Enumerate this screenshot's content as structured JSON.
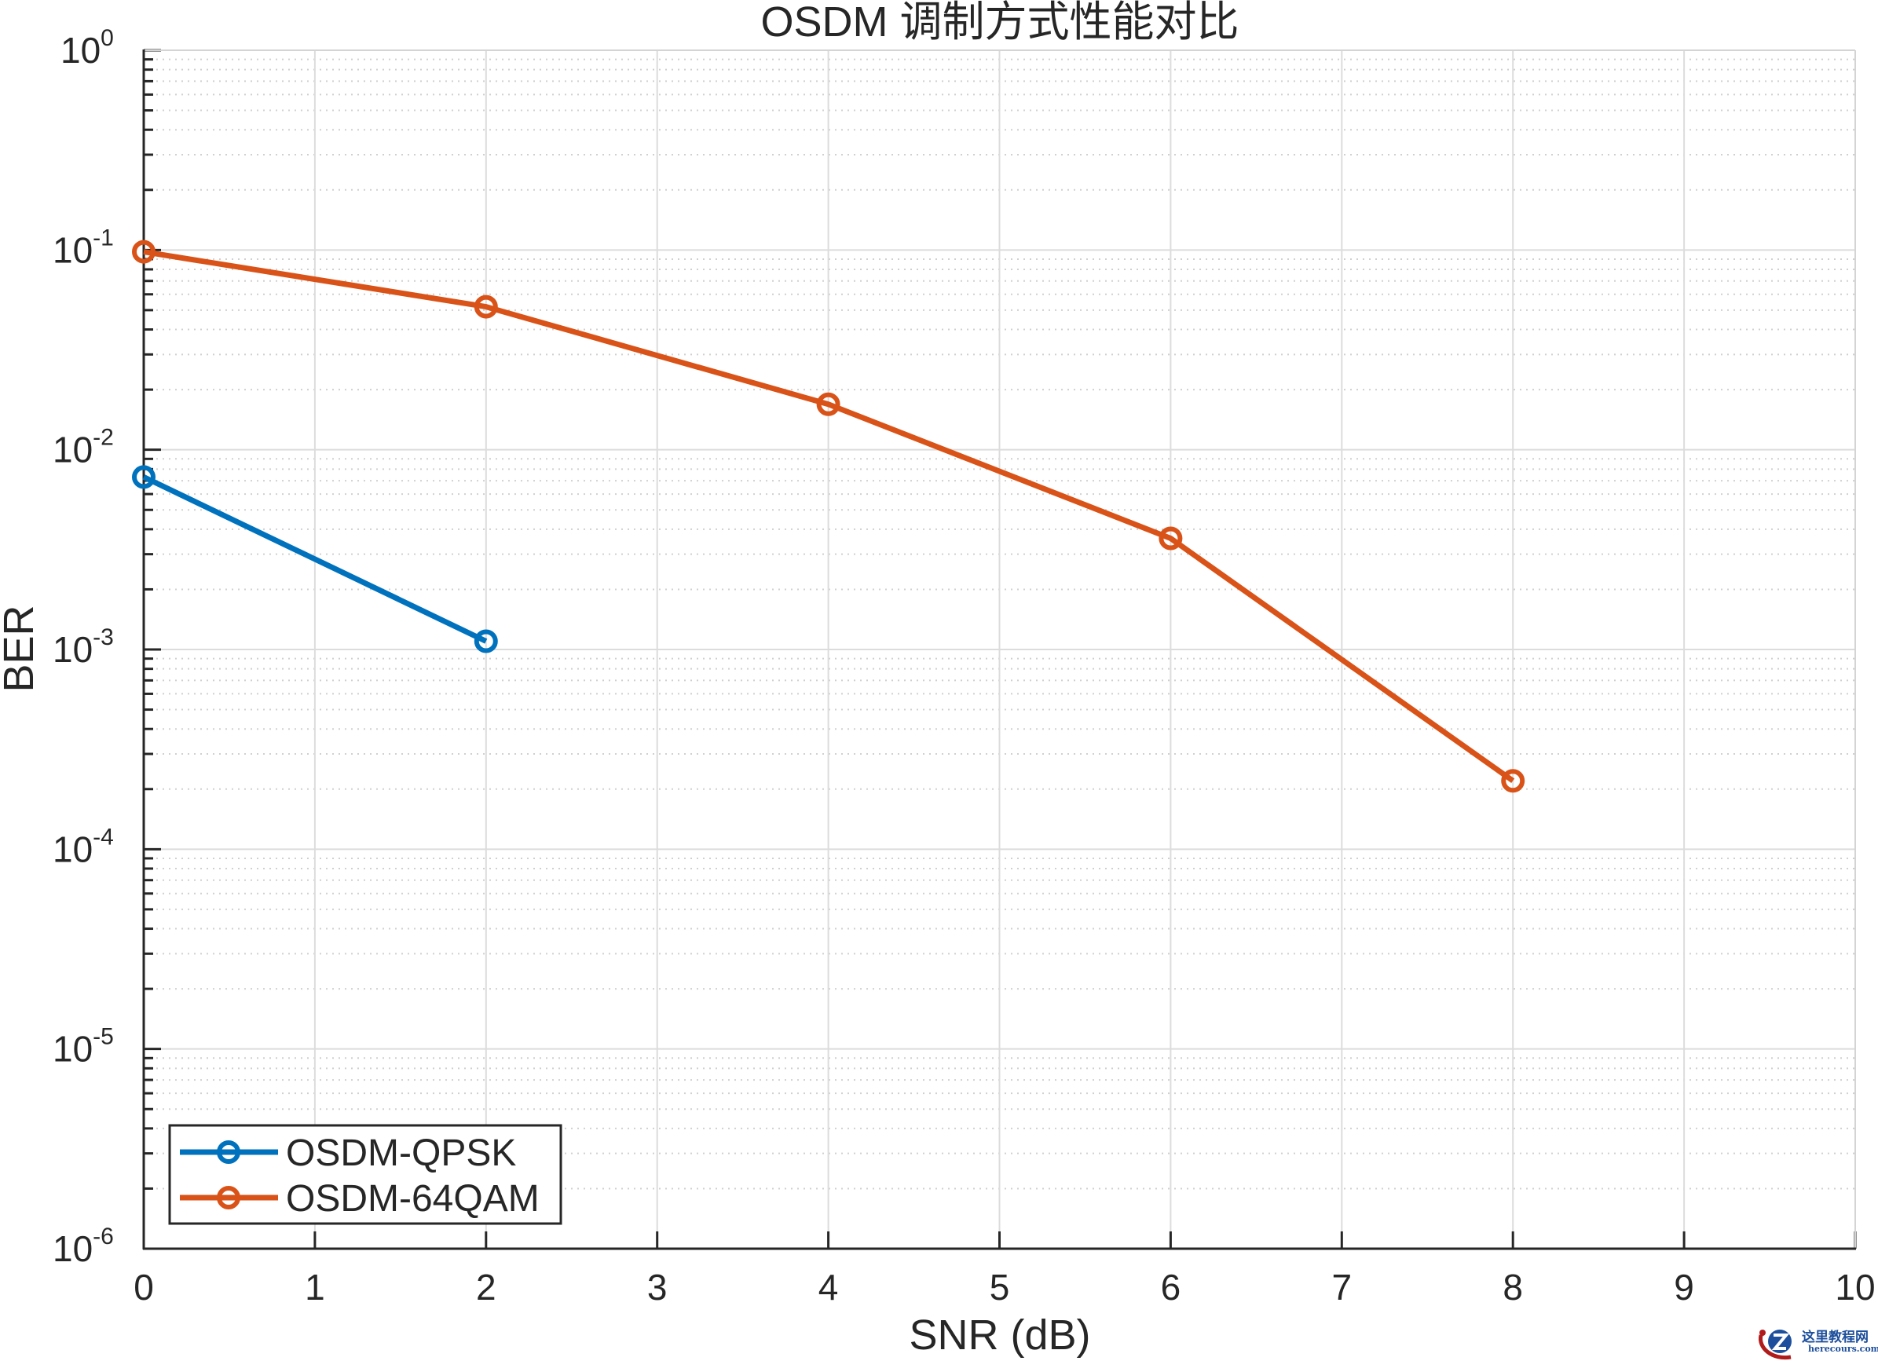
{
  "chart_data": {
    "type": "line",
    "title": "OSDM 调制方式性能对比",
    "xlabel": "SNR (dB)",
    "ylabel": "BER",
    "xscale": "linear",
    "yscale": "log",
    "xlim": [
      0,
      10
    ],
    "ylim": [
      1e-06,
      1
    ],
    "xticks": [
      0,
      1,
      2,
      3,
      4,
      5,
      6,
      7,
      8,
      9,
      10
    ],
    "yticks_exponents": [
      0,
      -1,
      -2,
      -3,
      -4,
      -5,
      -6
    ],
    "grid": true,
    "minor_grid": true,
    "legend_position": "southwest",
    "series": [
      {
        "name": "OSDM-QPSK",
        "color": "#0072BD",
        "marker": "circle",
        "x": [
          0,
          2
        ],
        "y": [
          0.0073,
          0.0011
        ]
      },
      {
        "name": "OSDM-64QAM",
        "color": "#D95319",
        "marker": "circle",
        "x": [
          0,
          2,
          4,
          6,
          8
        ],
        "y": [
          0.098,
          0.052,
          0.0169,
          0.0036,
          0.00022
        ]
      }
    ]
  },
  "watermark": {
    "cn": "这里教程网",
    "en": "herecours.com"
  }
}
